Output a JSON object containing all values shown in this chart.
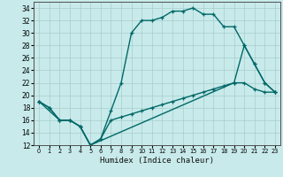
{
  "title": "",
  "xlabel": "Humidex (Indice chaleur)",
  "bg_color": "#c8eaea",
  "line_color": "#006868",
  "grid_color": "#a8cccc",
  "xlim": [
    -0.5,
    23.5
  ],
  "ylim": [
    12,
    35
  ],
  "yticks": [
    12,
    14,
    16,
    18,
    20,
    22,
    24,
    26,
    28,
    30,
    32,
    34
  ],
  "xticks": [
    0,
    1,
    2,
    3,
    4,
    5,
    6,
    7,
    8,
    9,
    10,
    11,
    12,
    13,
    14,
    15,
    16,
    17,
    18,
    19,
    20,
    21,
    22,
    23
  ],
  "series1_x": [
    0,
    1,
    2,
    3,
    4,
    5,
    6,
    7,
    8,
    9,
    10,
    11,
    12,
    13,
    14,
    15,
    16,
    17,
    18,
    19,
    20,
    21,
    22,
    23
  ],
  "series1_y": [
    19,
    18,
    16,
    16,
    15,
    12,
    13,
    17.5,
    22,
    30,
    32,
    32,
    32.5,
    33.5,
    33.5,
    34,
    33,
    33,
    31,
    31,
    28,
    25,
    22,
    20.5
  ],
  "series2_x": [
    0,
    1,
    2,
    3,
    4,
    5,
    6,
    7,
    8,
    9,
    10,
    11,
    12,
    13,
    14,
    15,
    16,
    17,
    18,
    19,
    20,
    21,
    22,
    23
  ],
  "series2_y": [
    19,
    18,
    16,
    16,
    15,
    12,
    13,
    16,
    16.5,
    17,
    17.5,
    18,
    18.5,
    19,
    19.5,
    20,
    20.5,
    21,
    21.5,
    22,
    22,
    21,
    20.5,
    20.5
  ],
  "series3_x": [
    0,
    2,
    3,
    4,
    5,
    19,
    20,
    21,
    22,
    23
  ],
  "series3_y": [
    19,
    16,
    16,
    15,
    12,
    22,
    28,
    25,
    22,
    20.5
  ]
}
